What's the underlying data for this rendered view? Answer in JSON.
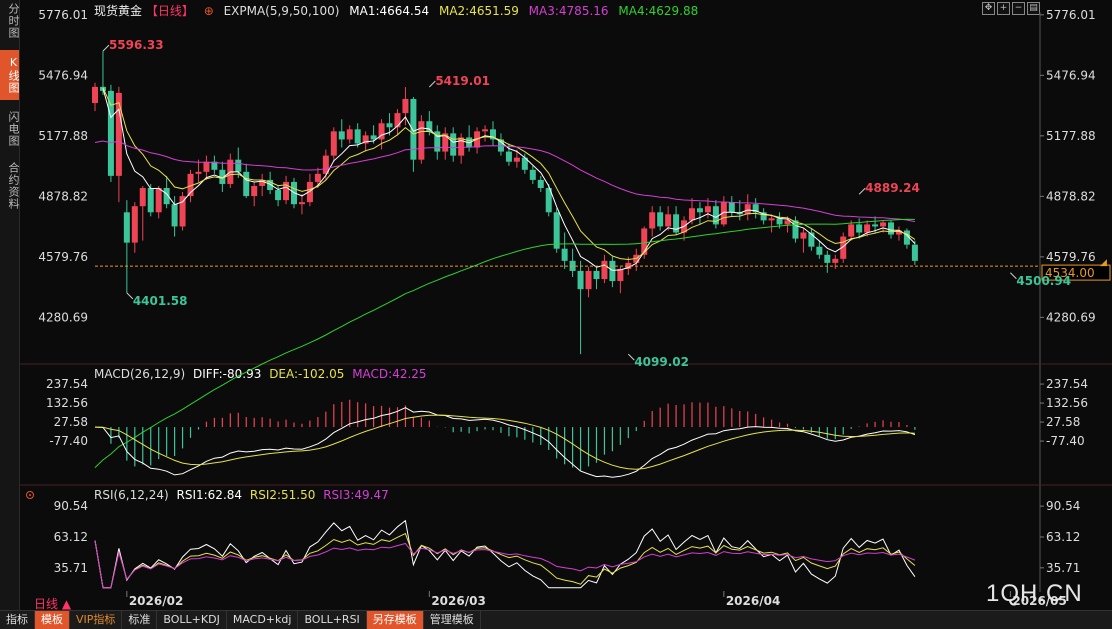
{
  "side_tabs": [
    "分时图",
    "K线图",
    "闪电图",
    "合约资料"
  ],
  "side_tab_active": 1,
  "header": {
    "title": "现货黄金",
    "period_badge": "【日线】",
    "plus_symbol": "⊕",
    "indicator": "EXPMA(5,9,50,100)",
    "ma1": "MA1:4664.54",
    "ma2": "MA2:4651.59",
    "ma3": "MA3:4785.16",
    "ma4": "MA4:4629.88"
  },
  "toolbar_icons": [
    "move-icon",
    "zoom-in-icon",
    "zoom-out-icon",
    "settings-icon"
  ],
  "macd_header": {
    "name": "MACD(26,12,9)",
    "diff": "DIFF:-80.93",
    "dea": "DEA:-102.05",
    "macd": "MACD:42.25"
  },
  "rsi_header": {
    "name": "RSI(6,12,24)",
    "rsi1": "RSI1:62.84",
    "rsi2": "RSI2:51.50",
    "rsi3": "RSI3:49.47"
  },
  "bottom_tabs": [
    {
      "label": "指标",
      "style": "normal"
    },
    {
      "label": "模板",
      "style": "hl"
    },
    {
      "label": "VIP指标",
      "style": "vip"
    },
    {
      "label": "标准",
      "style": "normal"
    },
    {
      "label": "BOLL+KDJ",
      "style": "normal"
    },
    {
      "label": "MACD+kdj",
      "style": "normal"
    },
    {
      "label": "BOLL+RSI",
      "style": "normal"
    },
    {
      "label": "另存模板",
      "style": "hl"
    },
    {
      "label": "管理模板",
      "style": "normal"
    }
  ],
  "period_label": "日线 ▲",
  "watermark": "1QH.CN",
  "colors": {
    "up": "#ee4455",
    "down": "#3cc49a",
    "ma1": "#ffffff",
    "ma2": "#e6e24a",
    "ma3": "#d33fd3",
    "ma4": "#2fd12f",
    "price_line": "#e89a1f"
  },
  "chart_data": [
    {
      "type": "candlestick",
      "y_ticks": [
        "5776.01",
        "5476.94",
        "5177.88",
        "4878.82",
        "4579.76",
        "4280.69"
      ],
      "y_tick_values": [
        5776.01,
        5476.94,
        5177.88,
        4878.82,
        4579.76,
        4280.69
      ],
      "ylim": [
        4060,
        5780
      ],
      "current_price": "4534.00",
      "current_price_value": 4534.0,
      "x_ticks": [
        "2026/02",
        "2026/03",
        "2026/04",
        "2026/05"
      ],
      "x_tick_indices": [
        4,
        42,
        79,
        115
      ],
      "annotations": [
        {
          "text": "5596.33",
          "index": 1,
          "value": 5596.33,
          "kind": "high"
        },
        {
          "text": "4401.58",
          "index": 4,
          "value": 4401.58,
          "kind": "low"
        },
        {
          "text": "5419.01",
          "index": 42,
          "value": 5419.01,
          "kind": "high"
        },
        {
          "text": "4099.02",
          "index": 67,
          "value": 4099.02,
          "kind": "low"
        },
        {
          "text": "4889.24",
          "index": 96,
          "value": 4889.24,
          "kind": "high"
        },
        {
          "text": "4500.94",
          "index": 115,
          "value": 4500.94,
          "kind": "low"
        }
      ],
      "ohlc": [
        [
          5340,
          5440,
          5300,
          5420
        ],
        [
          5420,
          5596.33,
          5380,
          5400
        ],
        [
          5400,
          5430,
          4950,
          4980
        ],
        [
          4980,
          5420,
          4850,
          5390
        ],
        [
          4800,
          4860,
          4401.58,
          4650
        ],
        [
          4650,
          4850,
          4600,
          4830
        ],
        [
          4830,
          4930,
          4660,
          4920
        ],
        [
          4920,
          4940,
          4780,
          4800
        ],
        [
          4800,
          4930,
          4770,
          4920
        ],
        [
          4920,
          4980,
          4820,
          4840
        ],
        [
          4840,
          4880,
          4680,
          4730
        ],
        [
          4730,
          4900,
          4710,
          4880
        ],
        [
          4880,
          5010,
          4850,
          4990
        ],
        [
          4990,
          5060,
          4950,
          5000
        ],
        [
          5000,
          5080,
          4960,
          5050
        ],
        [
          5050,
          5080,
          4990,
          5010
        ],
        [
          5010,
          5050,
          4900,
          4940
        ],
        [
          4940,
          5090,
          4920,
          5060
        ],
        [
          5060,
          5120,
          4970,
          5000
        ],
        [
          5000,
          5040,
          4870,
          4880
        ],
        [
          4880,
          4950,
          4830,
          4930
        ],
        [
          4930,
          4990,
          4880,
          4960
        ],
        [
          4960,
          5000,
          4890,
          4910
        ],
        [
          4910,
          4930,
          4830,
          4860
        ],
        [
          4860,
          4980,
          4840,
          4950
        ],
        [
          4950,
          4970,
          4820,
          4840
        ],
        [
          4840,
          4890,
          4790,
          4850
        ],
        [
          4850,
          4990,
          4830,
          4950
        ],
        [
          4950,
          5020,
          4920,
          4990
        ],
        [
          4990,
          5110,
          4960,
          5080
        ],
        [
          5080,
          5220,
          5050,
          5200
        ],
        [
          5200,
          5260,
          5120,
          5160
        ],
        [
          5160,
          5230,
          5140,
          5210
        ],
        [
          5210,
          5240,
          5120,
          5140
        ],
        [
          5140,
          5200,
          5100,
          5180
        ],
        [
          5180,
          5230,
          5140,
          5160
        ],
        [
          5160,
          5260,
          5110,
          5240
        ],
        [
          5240,
          5290,
          5180,
          5220
        ],
        [
          5220,
          5310,
          5180,
          5290
        ],
        [
          5290,
          5419.01,
          5230,
          5360
        ],
        [
          5360,
          5370,
          5000,
          5060
        ],
        [
          5060,
          5280,
          5040,
          5250
        ],
        [
          5250,
          5300,
          5180,
          5200
        ],
        [
          5200,
          5230,
          5060,
          5100
        ],
        [
          5100,
          5220,
          5060,
          5190
        ],
        [
          5190,
          5220,
          5050,
          5080
        ],
        [
          5080,
          5190,
          5040,
          5170
        ],
        [
          5170,
          5230,
          5100,
          5120
        ],
        [
          5120,
          5220,
          5090,
          5200
        ],
        [
          5200,
          5230,
          5150,
          5210
        ],
        [
          5210,
          5250,
          5130,
          5160
        ],
        [
          5160,
          5190,
          5080,
          5100
        ],
        [
          5100,
          5140,
          5030,
          5050
        ],
        [
          5050,
          5110,
          5020,
          5070
        ],
        [
          5070,
          5090,
          4990,
          5010
        ],
        [
          5010,
          5030,
          4940,
          4960
        ],
        [
          4960,
          4980,
          4900,
          4920
        ],
        [
          4920,
          4940,
          4780,
          4800
        ],
        [
          4800,
          4820,
          4600,
          4620
        ],
        [
          4620,
          4700,
          4520,
          4560
        ],
        [
          4560,
          4620,
          4480,
          4510
        ],
        [
          4510,
          4560,
          4099.02,
          4420
        ],
        [
          4420,
          4530,
          4380,
          4510
        ],
        [
          4510,
          4530,
          4420,
          4470
        ],
        [
          4470,
          4590,
          4450,
          4560
        ],
        [
          4560,
          4580,
          4430,
          4460
        ],
        [
          4460,
          4530,
          4400,
          4520
        ],
        [
          4520,
          4580,
          4490,
          4550
        ],
        [
          4550,
          4620,
          4510,
          4590
        ],
        [
          4590,
          4730,
          4570,
          4720
        ],
        [
          4720,
          4830,
          4680,
          4800
        ],
        [
          4800,
          4830,
          4710,
          4730
        ],
        [
          4730,
          4830,
          4710,
          4790
        ],
        [
          4790,
          4830,
          4690,
          4700
        ],
        [
          4700,
          4780,
          4660,
          4760
        ],
        [
          4760,
          4870,
          4740,
          4820
        ],
        [
          4820,
          4850,
          4740,
          4800
        ],
        [
          4800,
          4870,
          4770,
          4830
        ],
        [
          4830,
          4860,
          4720,
          4740
        ],
        [
          4740,
          4880,
          4730,
          4850
        ],
        [
          4850,
          4880,
          4780,
          4800
        ],
        [
          4800,
          4860,
          4760,
          4790
        ],
        [
          4790,
          4889.24,
          4760,
          4840
        ],
        [
          4840,
          4870,
          4770,
          4800
        ],
        [
          4800,
          4820,
          4740,
          4760
        ],
        [
          4760,
          4790,
          4700,
          4770
        ],
        [
          4770,
          4800,
          4720,
          4740
        ],
        [
          4740,
          4780,
          4700,
          4760
        ],
        [
          4760,
          4780,
          4650,
          4670
        ],
        [
          4670,
          4720,
          4600,
          4700
        ],
        [
          4700,
          4720,
          4610,
          4630
        ],
        [
          4630,
          4660,
          4570,
          4590
        ],
        [
          4590,
          4610,
          4500.94,
          4550
        ],
        [
          4550,
          4590,
          4520,
          4570
        ],
        [
          4570,
          4700,
          4550,
          4680
        ],
        [
          4680,
          4760,
          4660,
          4740
        ],
        [
          4740,
          4770,
          4670,
          4700
        ],
        [
          4700,
          4760,
          4680,
          4740
        ],
        [
          4740,
          4780,
          4700,
          4730
        ],
        [
          4730,
          4760,
          4700,
          4750
        ],
        [
          4750,
          4760,
          4670,
          4690
        ],
        [
          4690,
          4730,
          4660,
          4710
        ],
        [
          4710,
          4720,
          4620,
          4640
        ],
        [
          4640,
          4660,
          4540,
          4560
        ]
      ]
    },
    {
      "type": "bar",
      "name": "MACD",
      "y_ticks": [
        "237.54",
        "132.56",
        "27.58",
        "-77.40"
      ],
      "y_tick_values": [
        237.54,
        132.56,
        27.58,
        -77.4
      ],
      "ylim": [
        -320,
        260
      ]
    },
    {
      "type": "line",
      "name": "RSI",
      "y_ticks": [
        "90.54",
        "63.12",
        "35.71"
      ],
      "y_tick_values": [
        90.54,
        63.12,
        35.71
      ],
      "ylim": [
        16,
        96
      ]
    }
  ]
}
